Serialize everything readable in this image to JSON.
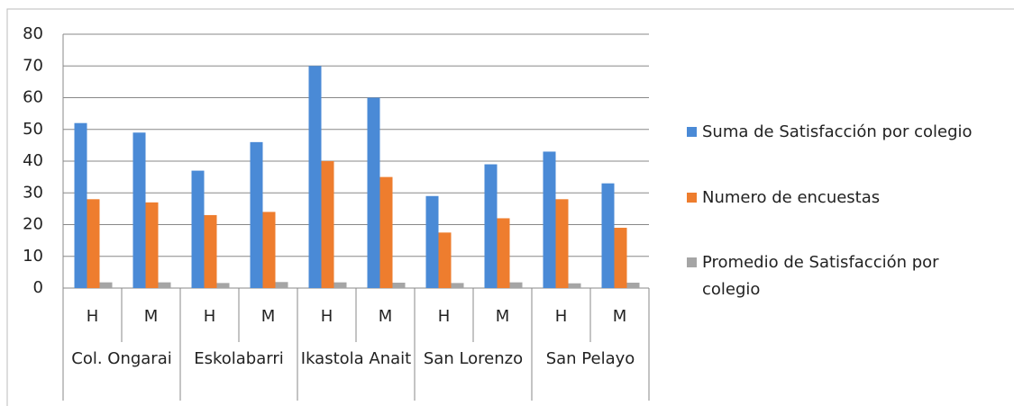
{
  "chart_data": {
    "type": "bar",
    "categories": [
      "H",
      "M",
      "H",
      "M",
      "H",
      "M",
      "H",
      "M",
      "H",
      "M"
    ],
    "groups": [
      "Col. Ongarai",
      "Eskolabarri",
      "Ikastola Anait",
      "San Lorenzo",
      "San Pelayo"
    ],
    "series": [
      {
        "name": "Suma de Satisfacción por colegio",
        "color": "#4a8ad6",
        "values": [
          52,
          49,
          37,
          46,
          70,
          60,
          29,
          39,
          43,
          33
        ]
      },
      {
        "name": "Numero de encuestas",
        "color": "#ee7d2e",
        "values": [
          28,
          27,
          23,
          24,
          40,
          35,
          17.5,
          22,
          28,
          19
        ]
      },
      {
        "name": "Promedio de Satisfacción por colegio",
        "color": "#a5a5a5",
        "values": [
          1.8,
          1.8,
          1.6,
          1.9,
          1.8,
          1.7,
          1.6,
          1.8,
          1.5,
          1.7
        ]
      }
    ],
    "ylim": [
      0,
      80
    ],
    "yticks": [
      0,
      10,
      20,
      30,
      40,
      50,
      60,
      70,
      80
    ],
    "grid": true,
    "legend": "right"
  }
}
